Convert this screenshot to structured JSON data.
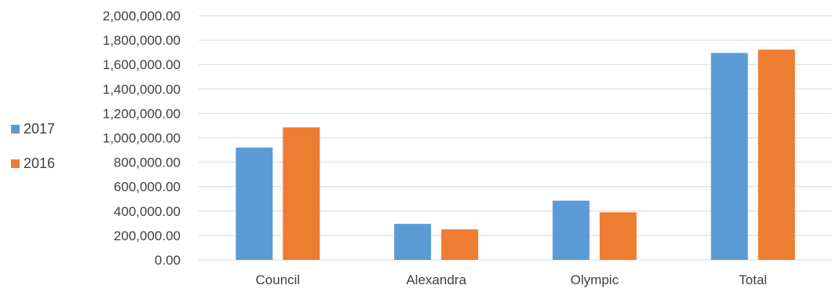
{
  "chart_data": {
    "type": "bar",
    "title": "",
    "xlabel": "",
    "ylabel": "",
    "categories": [
      "Council",
      "Alexandra",
      "Olympic",
      "Total"
    ],
    "series": [
      {
        "name": "2017",
        "color": "#5B9BD5",
        "values": [
          920000,
          295000,
          485000,
          1695000
        ]
      },
      {
        "name": "2016",
        "color": "#ED7D31",
        "values": [
          1085000,
          250000,
          390000,
          1722000
        ]
      }
    ],
    "ylim": [
      0,
      2000000
    ],
    "y_ticks": [
      "0.00",
      "200,000.00",
      "400,000.00",
      "600,000.00",
      "800,000.00",
      "1,000,000.00",
      "1,200,000.00",
      "1,400,000.00",
      "1,600,000.00",
      "1,800,000.00",
      "2,000,000.00"
    ],
    "grid": true,
    "gridline_color": "#D9D9D9",
    "legend_position": "left"
  }
}
